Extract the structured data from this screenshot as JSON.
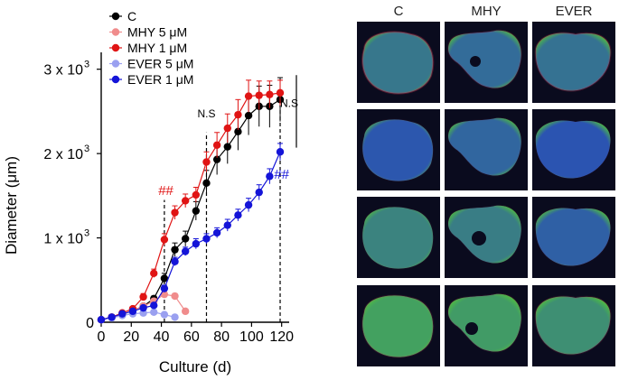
{
  "chart_data": {
    "type": "line",
    "xlabel": "Culture (d)",
    "ylabel": "Diameter (μm)",
    "xlim": [
      0,
      125
    ],
    "ylim": [
      0,
      3200
    ],
    "x_ticks": [
      "0",
      "20",
      "40",
      "60",
      "80",
      "100",
      "120"
    ],
    "y_ticks": [
      {
        "value": 1000,
        "base": "1 x 10",
        "exp": "3"
      },
      {
        "value": 2000,
        "base": "2 x 10",
        "exp": "3"
      },
      {
        "value": 3000,
        "base": "3 x 10",
        "exp": "3"
      }
    ],
    "legend_position": "top-left",
    "series": [
      {
        "name": "C",
        "color": "#000000",
        "x": [
          0,
          7,
          14,
          21,
          28,
          35,
          42,
          49,
          56,
          63,
          70,
          77,
          84,
          91,
          98,
          105,
          112,
          119
        ],
        "y": [
          30,
          60,
          90,
          140,
          190,
          280,
          520,
          860,
          990,
          1320,
          1650,
          1930,
          2080,
          2260,
          2450,
          2560,
          2560,
          2640
        ],
        "err": [
          10,
          15,
          15,
          20,
          20,
          30,
          60,
          80,
          90,
          110,
          150,
          180,
          200,
          220,
          230,
          240,
          250,
          260
        ]
      },
      {
        "name": "MHY 5 μM",
        "color": "#f08c8c",
        "x": [
          0,
          7,
          14,
          21,
          28,
          35,
          42,
          49,
          56
        ],
        "y": [
          30,
          60,
          90,
          140,
          190,
          250,
          330,
          310,
          130
        ],
        "err": [
          10,
          10,
          15,
          15,
          20,
          20,
          30,
          30,
          25
        ]
      },
      {
        "name": "MHY 1 μM",
        "color": "#e01414",
        "x": [
          0,
          7,
          14,
          21,
          28,
          35,
          42,
          49,
          56,
          63,
          70,
          77,
          84,
          91,
          98,
          105,
          112,
          119
        ],
        "y": [
          30,
          60,
          110,
          160,
          300,
          580,
          980,
          1300,
          1440,
          1510,
          1900,
          2100,
          2300,
          2460,
          2680,
          2690,
          2700,
          2720
        ],
        "err": [
          10,
          10,
          15,
          20,
          40,
          50,
          70,
          80,
          80,
          90,
          120,
          150,
          170,
          180,
          190,
          170,
          160,
          150
        ]
      },
      {
        "name": "EVER 5 μM",
        "color": "#9aa0f0",
        "x": [
          0,
          7,
          14,
          21,
          28,
          35,
          42,
          49
        ],
        "y": [
          30,
          50,
          80,
          100,
          110,
          120,
          90,
          60
        ],
        "err": [
          10,
          10,
          15,
          15,
          20,
          20,
          20,
          15
        ]
      },
      {
        "name": "EVER 1 μM",
        "color": "#1414d8",
        "x": [
          0,
          7,
          14,
          21,
          28,
          35,
          42,
          49,
          56,
          63,
          70,
          77,
          84,
          91,
          98,
          105,
          112,
          119
        ],
        "y": [
          30,
          60,
          100,
          130,
          170,
          200,
          400,
          720,
          840,
          930,
          990,
          1060,
          1150,
          1270,
          1390,
          1540,
          1730,
          2020
        ],
        "err": [
          10,
          10,
          15,
          15,
          20,
          20,
          40,
          50,
          50,
          60,
          60,
          60,
          70,
          70,
          80,
          90,
          90,
          100
        ]
      }
    ],
    "annotations": [
      {
        "text": "##",
        "x": 43,
        "y": 1510,
        "color": "#e01414"
      },
      {
        "text": "N.S",
        "x": 70,
        "y": 2430,
        "color": "#000000"
      },
      {
        "text": "N.S",
        "x": 125,
        "y": 2550,
        "color": "#000000"
      },
      {
        "text": "##",
        "x": 120,
        "y": 1700,
        "color": "#1414d8"
      }
    ],
    "reference_lines_x": [
      42,
      70,
      119
    ]
  },
  "micrograph_grid": {
    "columns": [
      "C",
      "MHY",
      "EVER"
    ],
    "row_count": 4,
    "colors": {
      "background": "#0a0b1e",
      "nuclei": "#2a4fb8",
      "marker_green": "#4fc43a",
      "marker_red": "#d8284a"
    }
  }
}
